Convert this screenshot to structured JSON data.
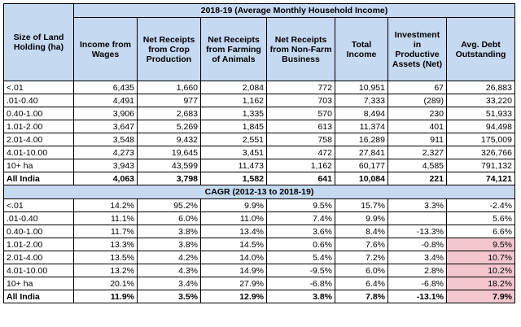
{
  "title1": "2018-19 (Average Monthly Household Income)",
  "row_header": "Size of Land Holding (ha)",
  "columns": [
    "Income from Wages",
    "Net Receipts from Crop Production",
    "Net Receipts from Farming of Animals",
    "Net Receipts from Non-Farm Business",
    "Total Income",
    "Investment in Productive Assets (Net)",
    "Avg. Debt Outstanding"
  ],
  "income_rows": [
    {
      "label": "<.01",
      "values": [
        "6,435",
        "1,660",
        "2,084",
        "772",
        "10,951",
        "67",
        "26,883"
      ]
    },
    {
      "label": ".01-0.40",
      "values": [
        "4,491",
        "977",
        "1,162",
        "703",
        "7,333",
        "(289)",
        "33,220"
      ]
    },
    {
      "label": "0.40-1.00",
      "values": [
        "3,906",
        "2,683",
        "1,335",
        "570",
        "8,494",
        "230",
        "51,933"
      ]
    },
    {
      "label": "1.01-2.00",
      "values": [
        "3,647",
        "5,269",
        "1,845",
        "613",
        "11,374",
        "401",
        "94,498"
      ]
    },
    {
      "label": "2.01-4.00",
      "values": [
        "3,548",
        "9,432",
        "2,551",
        "758",
        "16,289",
        "911",
        "175,009"
      ]
    },
    {
      "label": "4.01-10.00",
      "values": [
        "4,273",
        "19,645",
        "3,451",
        "472",
        "27,841",
        "2,327",
        "326,766"
      ]
    },
    {
      "label": "10+ ha",
      "values": [
        "3,943",
        "43,599",
        "11,473",
        "1,162",
        "60,177",
        "4,585",
        "791,132"
      ]
    },
    {
      "label": "All India",
      "values": [
        "4,063",
        "3,798",
        "1,582",
        "641",
        "10,084",
        "221",
        "74,121"
      ]
    }
  ],
  "title2": "CAGR (2012-13 to 2018-19)",
  "cagr_rows": [
    {
      "label": "<.01",
      "values": [
        "14.2%",
        "95.2%",
        "9.9%",
        "9.5%",
        "15.7%",
        "3.3%",
        "-2.4%"
      ]
    },
    {
      "label": ".01-0.40",
      "values": [
        "11.1%",
        "6.0%",
        "11.0%",
        "7.4%",
        "9.9%",
        "",
        "5.6%"
      ]
    },
    {
      "label": "0.40-1.00",
      "values": [
        "11.7%",
        "3.8%",
        "13.4%",
        "3.6%",
        "8.4%",
        "-13.3%",
        "6.6%"
      ]
    },
    {
      "label": "1.01-2.00",
      "values": [
        "13.3%",
        "3.8%",
        "14.5%",
        "0.6%",
        "7.6%",
        "-0.8%",
        "9.5%"
      ]
    },
    {
      "label": "2.01-4.00",
      "values": [
        "13.5%",
        "4.2%",
        "14.0%",
        "5.4%",
        "7.2%",
        "3.4%",
        "10.7%"
      ]
    },
    {
      "label": "4.01-10.00",
      "values": [
        "13.2%",
        "4.3%",
        "14.9%",
        "-9.5%",
        "6.0%",
        "2.8%",
        "10.2%"
      ]
    },
    {
      "label": "10+ ha",
      "values": [
        "20.1%",
        "3.4%",
        "27.9%",
        "-6.8%",
        "6.4%",
        "-6.8%",
        "18.2%"
      ]
    },
    {
      "label": "All India",
      "values": [
        "11.9%",
        "3.5%",
        "12.9%",
        "3.8%",
        "7.8%",
        "-13.1%",
        "7.9%"
      ]
    }
  ],
  "highlight_color": "#f4c7cf"
}
